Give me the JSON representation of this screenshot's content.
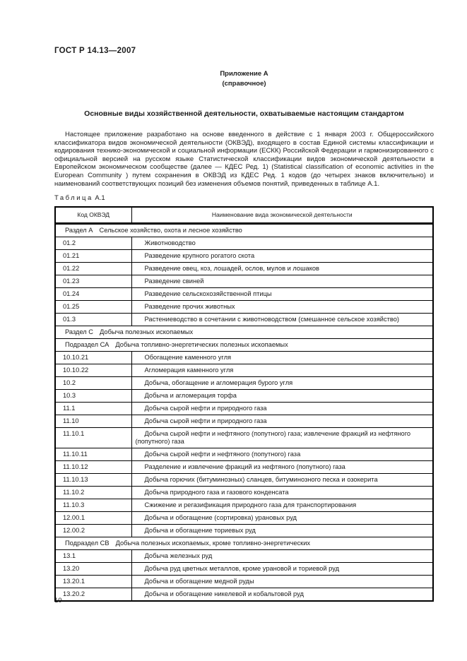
{
  "page": {
    "doc_code": "ГОСТ Р 14.13—2007",
    "annex_title": "Приложение А",
    "annex_subtitle": "(справочное)",
    "title": "Основные виды хозяйственной деятельности, охватываемые настоящим стандартом",
    "intro_paragraph": "Настоящее приложение разработано на основе введенного в действие с 1 января 2003 г. Общероссийского классификатора видов экономической деятельности (ОКВЭД), входящего в состав Единой системы классификации и кодирования технико-экономической и социальной информации (ЕСКК) Российской Федерации и гармонизированного с официальной версией на русском языке Статистической классификации видов экономической деятельности в Европейском экономическом сообществе (далее — КДЕС Ред. 1) (Statistical classification of economic activities in the European Community ) путем сохранения в ОКВЭД из КДЕС Ред. 1 кодов (до четырех знаков включительно) и наименований соответствующих позиций без изменения объемов понятий, приведенных в таблице А.1.",
    "table_label_word": "Таблица",
    "table_label_number": "А.1",
    "page_number": "10"
  },
  "colors": {
    "text": "#1c1c1c",
    "background": "#ffffff",
    "table_border": "#000000"
  },
  "table": {
    "headers": [
      "Код ОКВЭД",
      "Наименование вида экономической деятельности"
    ],
    "rows": [
      {
        "type": "section",
        "label": "Раздел А",
        "name": "Сельское хозяйство, охота и лесное хозяйство"
      },
      {
        "type": "data",
        "code": "01.2",
        "name": "Животноводство"
      },
      {
        "type": "data",
        "code": "01.21",
        "name": "Разведение крупного рогатого скота"
      },
      {
        "type": "data",
        "code": "01.22",
        "name": "Разведение овец, коз, лошадей, ослов, мулов и лошаков"
      },
      {
        "type": "data",
        "code": "01.23",
        "name": "Разведение свиней"
      },
      {
        "type": "data",
        "code": "01.24",
        "name": "Разведение сельскохозяйственной птицы"
      },
      {
        "type": "data",
        "code": "01.25",
        "name": "Разведение прочих животных"
      },
      {
        "type": "data",
        "code": "01.3",
        "name": "Растениеводство в сочетании с животноводством (смешанное сельское хозяйство)"
      },
      {
        "type": "section",
        "label": "Раздел С",
        "name": "Добыча полезных ископаемых"
      },
      {
        "type": "section",
        "label": "Подраздел СА",
        "name": "Добыча топливно-энергетических полезных ископаемых"
      },
      {
        "type": "data",
        "code": "10.10.21",
        "name": "Обогащение каменного угля"
      },
      {
        "type": "data",
        "code": "10.10.22",
        "name": "Агломерация каменного угля"
      },
      {
        "type": "data",
        "code": "10.2",
        "name": "Добыча, обогащение и агломерация бурого угля"
      },
      {
        "type": "data",
        "code": "10.3",
        "name": "Добыча и агломерация торфа"
      },
      {
        "type": "data",
        "code": "11.1",
        "name": "Добыча сырой нефти и природного газа"
      },
      {
        "type": "data",
        "code": "11.10",
        "name": "Добыча сырой нефти и природного газа"
      },
      {
        "type": "data",
        "code": "11.10.1",
        "name": "Добыча сырой нефти и нефтяного (попутного) газа; извлечение фракций из нефтяного (попутного) газа",
        "multiline": true
      },
      {
        "type": "data",
        "code": "11.10.11",
        "name": "Добыча сырой нефти и нефтяного (попутного) газа"
      },
      {
        "type": "data",
        "code": "11.10.12",
        "name": "Разделение и извлечение фракций из нефтяного (попутного) газа"
      },
      {
        "type": "data",
        "code": "11.10.13",
        "name": "Добыча горючих (битуминозных) сланцев, битуминозного песка и озокерита"
      },
      {
        "type": "data",
        "code": "11.10.2",
        "name": "Добыча природного газа и газового конденсата"
      },
      {
        "type": "data",
        "code": "11.10.3",
        "name": "Сжижение и регазификация природного газа для транспортирования"
      },
      {
        "type": "data",
        "code": "12.00.1",
        "name": "Добыча и обогащение (сортировка) урановых руд"
      },
      {
        "type": "data",
        "code": "12.00.2",
        "name": "Добыча и обогащение ториевых руд"
      },
      {
        "type": "section",
        "label": "Подраздел СВ",
        "name": "Добыча полезных ископаемых, кроме топливно-энергетических"
      },
      {
        "type": "data",
        "code": "13.1",
        "name": "Добыча железных руд"
      },
      {
        "type": "data",
        "code": "13.20",
        "name": "Добыча руд цветных металлов, кроме урановой и ториевой руд"
      },
      {
        "type": "data",
        "code": "13.20.1",
        "name": "Добыча и обогащение медной руды"
      },
      {
        "type": "data",
        "code": "13.20.2",
        "name": "Добыча и обогащение никелевой и кобальтовой руд"
      }
    ]
  }
}
